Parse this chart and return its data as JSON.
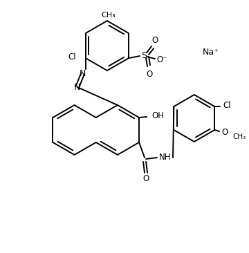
{
  "background": "#ffffff",
  "line_color": "#000000",
  "line_width": 1.4,
  "label_fontsize": 8.5,
  "figsize": [
    3.6,
    3.66
  ],
  "dpi": 100,
  "na_label": "Na⁺",
  "oh_label": "OH",
  "cl_label": "Cl",
  "nh_label": "NH",
  "o_label": "O",
  "s_label": "S",
  "ominus_label": "O⁻",
  "ch3_label": "CH₃",
  "ome_label": "O",
  "me_label": "CH₃"
}
